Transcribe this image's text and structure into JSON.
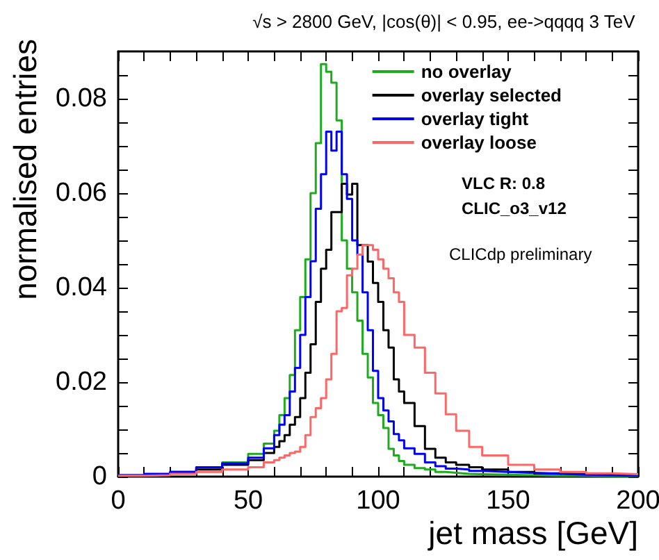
{
  "chart_data": {
    "type": "step",
    "title": "√s > 2800 GeV, |cos(θ)| < 0.95, ee->qqqq 3 TeV",
    "xlabel": "jet mass [GeV]",
    "ylabel": "normalised entries",
    "annotations": [
      "VLC R: 0.8",
      "CLIC_o3_v12",
      "CLICdp preliminary"
    ],
    "x": [
      0,
      10,
      20,
      30,
      40,
      50,
      56,
      60,
      62,
      64,
      66,
      68,
      70,
      72,
      74,
      76,
      78,
      80,
      82,
      84,
      86,
      88,
      90,
      92,
      94,
      96,
      98,
      100,
      102,
      104,
      106,
      108,
      110,
      114,
      118,
      122,
      126,
      130,
      135,
      140,
      150,
      160,
      170,
      180,
      190,
      200
    ],
    "series": [
      {
        "name": "no overlay",
        "color": "#1faa1f",
        "values": [
          null,
          null,
          null,
          0.002,
          0.003,
          0.0048,
          0.007,
          0.0097,
          0.013,
          0.0166,
          0.0215,
          0.031,
          0.038,
          0.046,
          0.06,
          0.0706,
          0.0873,
          0.0857,
          0.0834,
          0.0754,
          0.05,
          0.044,
          0.039,
          0.033,
          0.026,
          0.021,
          0.0156,
          0.013,
          0.0103,
          0.0059,
          0.0045,
          0.0033,
          0.0025,
          0.0018,
          0.0015,
          0.001,
          0.0008,
          0.0006,
          0.0005,
          0.0004,
          0.0003,
          0.0002,
          0.0002,
          0.0001,
          0.0001,
          0.0001
        ]
      },
      {
        "name": "overlay selected",
        "color": "#000000",
        "values": [
          0.0003,
          0.0005,
          0.001,
          0.0015,
          0.0025,
          0.0035,
          0.005,
          0.0063,
          0.0075,
          0.0088,
          0.011,
          0.0126,
          0.0166,
          0.022,
          0.028,
          0.037,
          0.044,
          0.048,
          0.056,
          0.056,
          0.062,
          0.0597,
          0.062,
          0.049,
          0.049,
          0.0455,
          0.041,
          0.037,
          0.031,
          0.0273,
          0.0206,
          0.018,
          0.0156,
          0.0107,
          0.0059,
          0.004,
          0.003,
          0.0025,
          0.002,
          0.0015,
          0.001,
          0.0007,
          0.0005,
          0.0004,
          0.0003,
          0.0003
        ]
      },
      {
        "name": "overlay tight",
        "color": "#0000ff",
        "values": [
          0.0003,
          0.0006,
          0.001,
          0.002,
          0.0028,
          0.004,
          0.006,
          0.0088,
          0.011,
          0.013,
          0.018,
          0.023,
          0.03,
          0.038,
          0.0456,
          0.0567,
          0.064,
          0.073,
          0.069,
          0.073,
          0.064,
          0.0588,
          0.05,
          0.047,
          0.039,
          0.031,
          0.0224,
          0.0166,
          0.014,
          0.0117,
          0.009,
          0.0077,
          0.006,
          0.0048,
          0.003,
          0.0022,
          0.0017,
          0.0015,
          0.0012,
          0.001,
          0.0008,
          0.0006,
          0.0004,
          0.0003,
          0.0002,
          0.0002
        ]
      },
      {
        "name": "overlay loose",
        "color": "#ff6666",
        "values": [
          0.0002,
          0.0003,
          0.0006,
          0.001,
          0.0015,
          0.002,
          0.003,
          0.0035,
          0.004,
          0.0045,
          0.005,
          0.0053,
          0.0063,
          0.0088,
          0.0126,
          0.0145,
          0.0166,
          0.0206,
          0.026,
          0.035,
          0.0357,
          0.0426,
          0.044,
          0.047,
          0.049,
          0.049,
          0.048,
          0.046,
          0.044,
          0.042,
          0.039,
          0.037,
          0.03,
          0.0273,
          0.022,
          0.0176,
          0.0132,
          0.0097,
          0.0063,
          0.0045,
          0.0025,
          0.0015,
          0.001,
          0.0007,
          0.0005,
          0.0005
        ]
      }
    ],
    "xlim": [
      0,
      200
    ],
    "xticks": [
      0,
      {
        "value": 10,
        "label": null
      },
      {
        "value": 20,
        "label": null
      },
      {
        "value": 30,
        "label": null
      },
      {
        "value": 40,
        "label": null
      },
      50,
      {
        "value": 60,
        "label": null
      },
      {
        "value": 70,
        "label": null
      },
      {
        "value": 80,
        "label": null
      },
      {
        "value": 90,
        "label": null
      },
      100,
      {
        "value": 110,
        "label": null
      },
      {
        "value": 120,
        "label": null
      },
      {
        "value": 130,
        "label": null
      },
      {
        "value": 140,
        "label": null
      },
      150,
      {
        "value": 160,
        "label": null
      },
      {
        "value": 170,
        "label": null
      },
      {
        "value": 180,
        "label": null
      },
      {
        "value": 190,
        "label": null
      },
      200
    ],
    "ylim": [
      0,
      0.09
    ],
    "yticks": [
      0,
      {
        "value": 0.005,
        "label": null
      },
      {
        "value": 0.01,
        "label": null
      },
      {
        "value": 0.015,
        "label": null
      },
      0.02,
      {
        "value": 0.025,
        "label": null
      },
      {
        "value": 0.03,
        "label": null
      },
      {
        "value": 0.035,
        "label": null
      },
      0.04,
      {
        "value": 0.045,
        "label": null
      },
      {
        "value": 0.05,
        "label": null
      },
      {
        "value": 0.055,
        "label": null
      },
      0.06,
      {
        "value": 0.065,
        "label": null
      },
      {
        "value": 0.07,
        "label": null
      },
      {
        "value": 0.075,
        "label": null
      },
      0.08,
      {
        "value": 0.085,
        "label": null
      }
    ],
    "grid": false,
    "legend": "top right",
    "marker": "none",
    "line_style": "solid"
  }
}
